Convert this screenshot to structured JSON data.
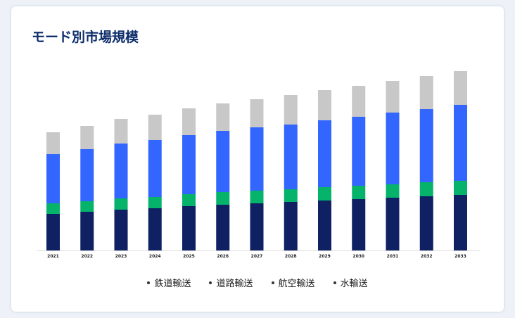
{
  "title": "モード別市場規模",
  "chart_data": {
    "type": "bar",
    "stacked": true,
    "title": "モード別市場規模",
    "xlabel": "",
    "ylabel": "",
    "y_axis_shown": false,
    "grid": false,
    "legend_position": "bottom",
    "categories": [
      "2021",
      "2022",
      "2023",
      "2024",
      "2025",
      "2026",
      "2027",
      "2028",
      "2029",
      "2030",
      "2031",
      "2032",
      "2033"
    ],
    "series": [
      {
        "name": "鉄道輸送",
        "color": "#0f2163",
        "values": [
          52,
          55,
          58,
          60,
          63,
          65,
          67,
          69,
          71,
          73,
          75,
          77,
          79
        ]
      },
      {
        "name": "道路輸送",
        "color": "#06b36b",
        "values": [
          15,
          15,
          16,
          16,
          17,
          18,
          18,
          18,
          19,
          19,
          19,
          20,
          20
        ]
      },
      {
        "name": "航空輸送",
        "color": "#3366ff",
        "values": [
          70,
          74,
          78,
          81,
          84,
          87,
          90,
          92,
          95,
          98,
          102,
          104,
          108
        ]
      },
      {
        "name": "水輸送",
        "color": "#c8c8c8",
        "values": [
          31,
          33,
          35,
          36,
          38,
          39,
          40,
          42,
          43,
          44,
          45,
          47,
          48
        ]
      }
    ]
  }
}
